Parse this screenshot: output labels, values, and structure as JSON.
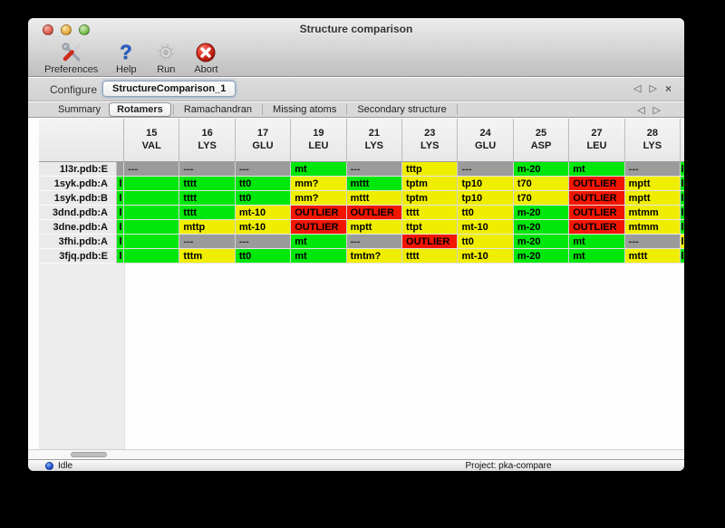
{
  "window": {
    "title": "Structure comparison"
  },
  "toolbar": {
    "items": [
      {
        "label": "Preferences",
        "icon": "tools-icon"
      },
      {
        "label": "Help",
        "icon": "question-icon"
      },
      {
        "label": "Run",
        "icon": "gear-icon"
      },
      {
        "label": "Abort",
        "icon": "abort-icon"
      }
    ]
  },
  "configure": {
    "label": "Configure",
    "value": "StructureComparison_1",
    "nav_back": "◁",
    "nav_forward": "▷",
    "nav_close": "×"
  },
  "tabs": {
    "items": [
      {
        "label": "Summary"
      },
      {
        "label": "Rotamers"
      },
      {
        "label": "Ramachandran"
      },
      {
        "label": "Missing atoms"
      },
      {
        "label": "Secondary structure"
      }
    ],
    "active_index": 1,
    "nav_back": "◁",
    "nav_forward": "▷"
  },
  "colors": {
    "green": "#00e70b",
    "yellow": "#f0ee00",
    "red": "#f21600",
    "gray": "#9b9b9b"
  },
  "table": {
    "columns": [
      {
        "num": "15",
        "res": "VAL"
      },
      {
        "num": "16",
        "res": "LYS"
      },
      {
        "num": "17",
        "res": "GLU"
      },
      {
        "num": "19",
        "res": "LEU"
      },
      {
        "num": "21",
        "res": "LYS"
      },
      {
        "num": "23",
        "res": "LYS"
      },
      {
        "num": "24",
        "res": "GLU"
      },
      {
        "num": "25",
        "res": "ASP"
      },
      {
        "num": "27",
        "res": "LEU"
      },
      {
        "num": "28",
        "res": "LYS"
      }
    ],
    "rows": [
      {
        "label": "1l3r.pdb:E",
        "left": {
          "c": "gray",
          "tick": false
        },
        "cells": [
          [
            "---",
            "gray"
          ],
          [
            "---",
            "gray"
          ],
          [
            "---",
            "gray"
          ],
          [
            "mt",
            "green"
          ],
          [
            "---",
            "gray"
          ],
          [
            "tttp",
            "yellow"
          ],
          [
            "---",
            "gray"
          ],
          [
            "m-20",
            "green"
          ],
          [
            "mt",
            "green"
          ],
          [
            "---",
            "gray"
          ]
        ],
        "right": {
          "c": "green",
          "tick": true
        }
      },
      {
        "label": "1syk.pdb:A",
        "left": {
          "c": "green",
          "tick": true
        },
        "cells": [
          [
            "",
            "green"
          ],
          [
            "tttt",
            "green"
          ],
          [
            "tt0",
            "green"
          ],
          [
            "mm?",
            "yellow"
          ],
          [
            "mttt",
            "green"
          ],
          [
            "tptm",
            "yellow"
          ],
          [
            "tp10",
            "yellow"
          ],
          [
            "t70",
            "yellow"
          ],
          [
            "OUTLIER",
            "red"
          ],
          [
            "mptt",
            "yellow"
          ]
        ],
        "right": {
          "c": "green",
          "tick": true
        }
      },
      {
        "label": "1syk.pdb:B",
        "left": {
          "c": "green",
          "tick": true
        },
        "cells": [
          [
            "",
            "green"
          ],
          [
            "tttt",
            "green"
          ],
          [
            "tt0",
            "green"
          ],
          [
            "mm?",
            "yellow"
          ],
          [
            "mttt",
            "yellow"
          ],
          [
            "tptm",
            "yellow"
          ],
          [
            "tp10",
            "yellow"
          ],
          [
            "t70",
            "yellow"
          ],
          [
            "OUTLIER",
            "red"
          ],
          [
            "mptt",
            "yellow"
          ]
        ],
        "right": {
          "c": "green",
          "tick": true
        }
      },
      {
        "label": "3dnd.pdb:A",
        "left": {
          "c": "green",
          "tick": true
        },
        "cells": [
          [
            "",
            "green"
          ],
          [
            "tttt",
            "green"
          ],
          [
            "mt-10",
            "yellow"
          ],
          [
            "OUTLIER",
            "red"
          ],
          [
            "OUTLIER",
            "red"
          ],
          [
            "tttt",
            "yellow"
          ],
          [
            "tt0",
            "yellow"
          ],
          [
            "m-20",
            "green"
          ],
          [
            "OUTLIER",
            "red"
          ],
          [
            "mtmm",
            "yellow"
          ]
        ],
        "right": {
          "c": "green",
          "tick": true
        }
      },
      {
        "label": "3dne.pdb:A",
        "left": {
          "c": "green",
          "tick": true
        },
        "cells": [
          [
            "",
            "green"
          ],
          [
            "mttp",
            "yellow"
          ],
          [
            "mt-10",
            "yellow"
          ],
          [
            "OUTLIER",
            "red"
          ],
          [
            "mptt",
            "yellow"
          ],
          [
            "ttpt",
            "yellow"
          ],
          [
            "mt-10",
            "yellow"
          ],
          [
            "m-20",
            "green"
          ],
          [
            "OUTLIER",
            "red"
          ],
          [
            "mtmm",
            "yellow"
          ]
        ],
        "right": {
          "c": "green",
          "tick": true
        }
      },
      {
        "label": "3fhi.pdb:A",
        "left": {
          "c": "green",
          "tick": true
        },
        "cells": [
          [
            "",
            "green"
          ],
          [
            "---",
            "gray"
          ],
          [
            "---",
            "gray"
          ],
          [
            "mt",
            "green"
          ],
          [
            "---",
            "gray"
          ],
          [
            "OUTLIER",
            "red"
          ],
          [
            "tt0",
            "yellow"
          ],
          [
            "m-20",
            "green"
          ],
          [
            "mt",
            "green"
          ],
          [
            "---",
            "gray"
          ]
        ],
        "right": {
          "c": "yellow",
          "tick": true
        }
      },
      {
        "label": "3fjq.pdb:E",
        "left": {
          "c": "green",
          "tick": true
        },
        "cells": [
          [
            "",
            "green"
          ],
          [
            "tttm",
            "yellow"
          ],
          [
            "tt0",
            "green"
          ],
          [
            "mt",
            "green"
          ],
          [
            "tmtm?",
            "yellow"
          ],
          [
            "tttt",
            "yellow"
          ],
          [
            "mt-10",
            "yellow"
          ],
          [
            "m-20",
            "green"
          ],
          [
            "mt",
            "green"
          ],
          [
            "mttt",
            "yellow"
          ]
        ],
        "right": {
          "c": "green",
          "tick": true
        }
      }
    ]
  },
  "statusbar": {
    "status": "Idle",
    "project": "Project: pka-compare"
  }
}
